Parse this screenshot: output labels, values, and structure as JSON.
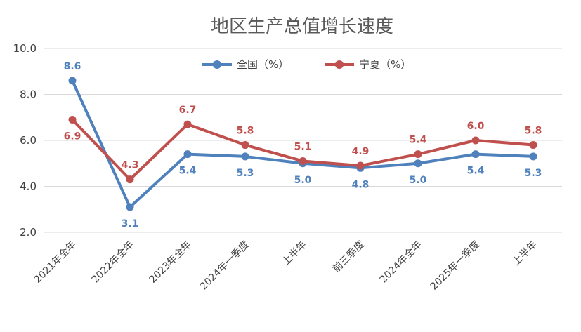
{
  "chart_data": {
    "type": "line",
    "title": "地区生产总值增长速度",
    "categories": [
      "2021年全年",
      "2022年全年",
      "2023年全年",
      "2024年一季度",
      "上半年",
      "前三季度",
      "2024年全年",
      "2025年一季度",
      "上半年"
    ],
    "series": [
      {
        "name": "全国（%）",
        "color": "#4f81bd",
        "values": [
          8.6,
          3.1,
          5.4,
          5.3,
          5.0,
          4.8,
          5.0,
          5.4,
          5.3
        ],
        "labels": [
          "8.6",
          "3.1",
          "5.4",
          "5.3",
          "5.0",
          "4.8",
          "5.0",
          "5.4",
          "5.3"
        ]
      },
      {
        "name": "宁夏（%）",
        "color": "#c0504d",
        "values": [
          6.9,
          4.3,
          6.7,
          5.8,
          5.1,
          4.9,
          5.4,
          6.0,
          5.8
        ],
        "labels": [
          "6.9",
          "4.3",
          "6.7",
          "5.8",
          "5.1",
          "4.9",
          "5.4",
          "6.0",
          "5.8"
        ]
      }
    ],
    "ylim": [
      2.0,
      10.0
    ],
    "yticks": [
      "2.0",
      "4.0",
      "6.0",
      "8.0",
      "10.0"
    ],
    "grid": true,
    "legend_position": "top"
  }
}
